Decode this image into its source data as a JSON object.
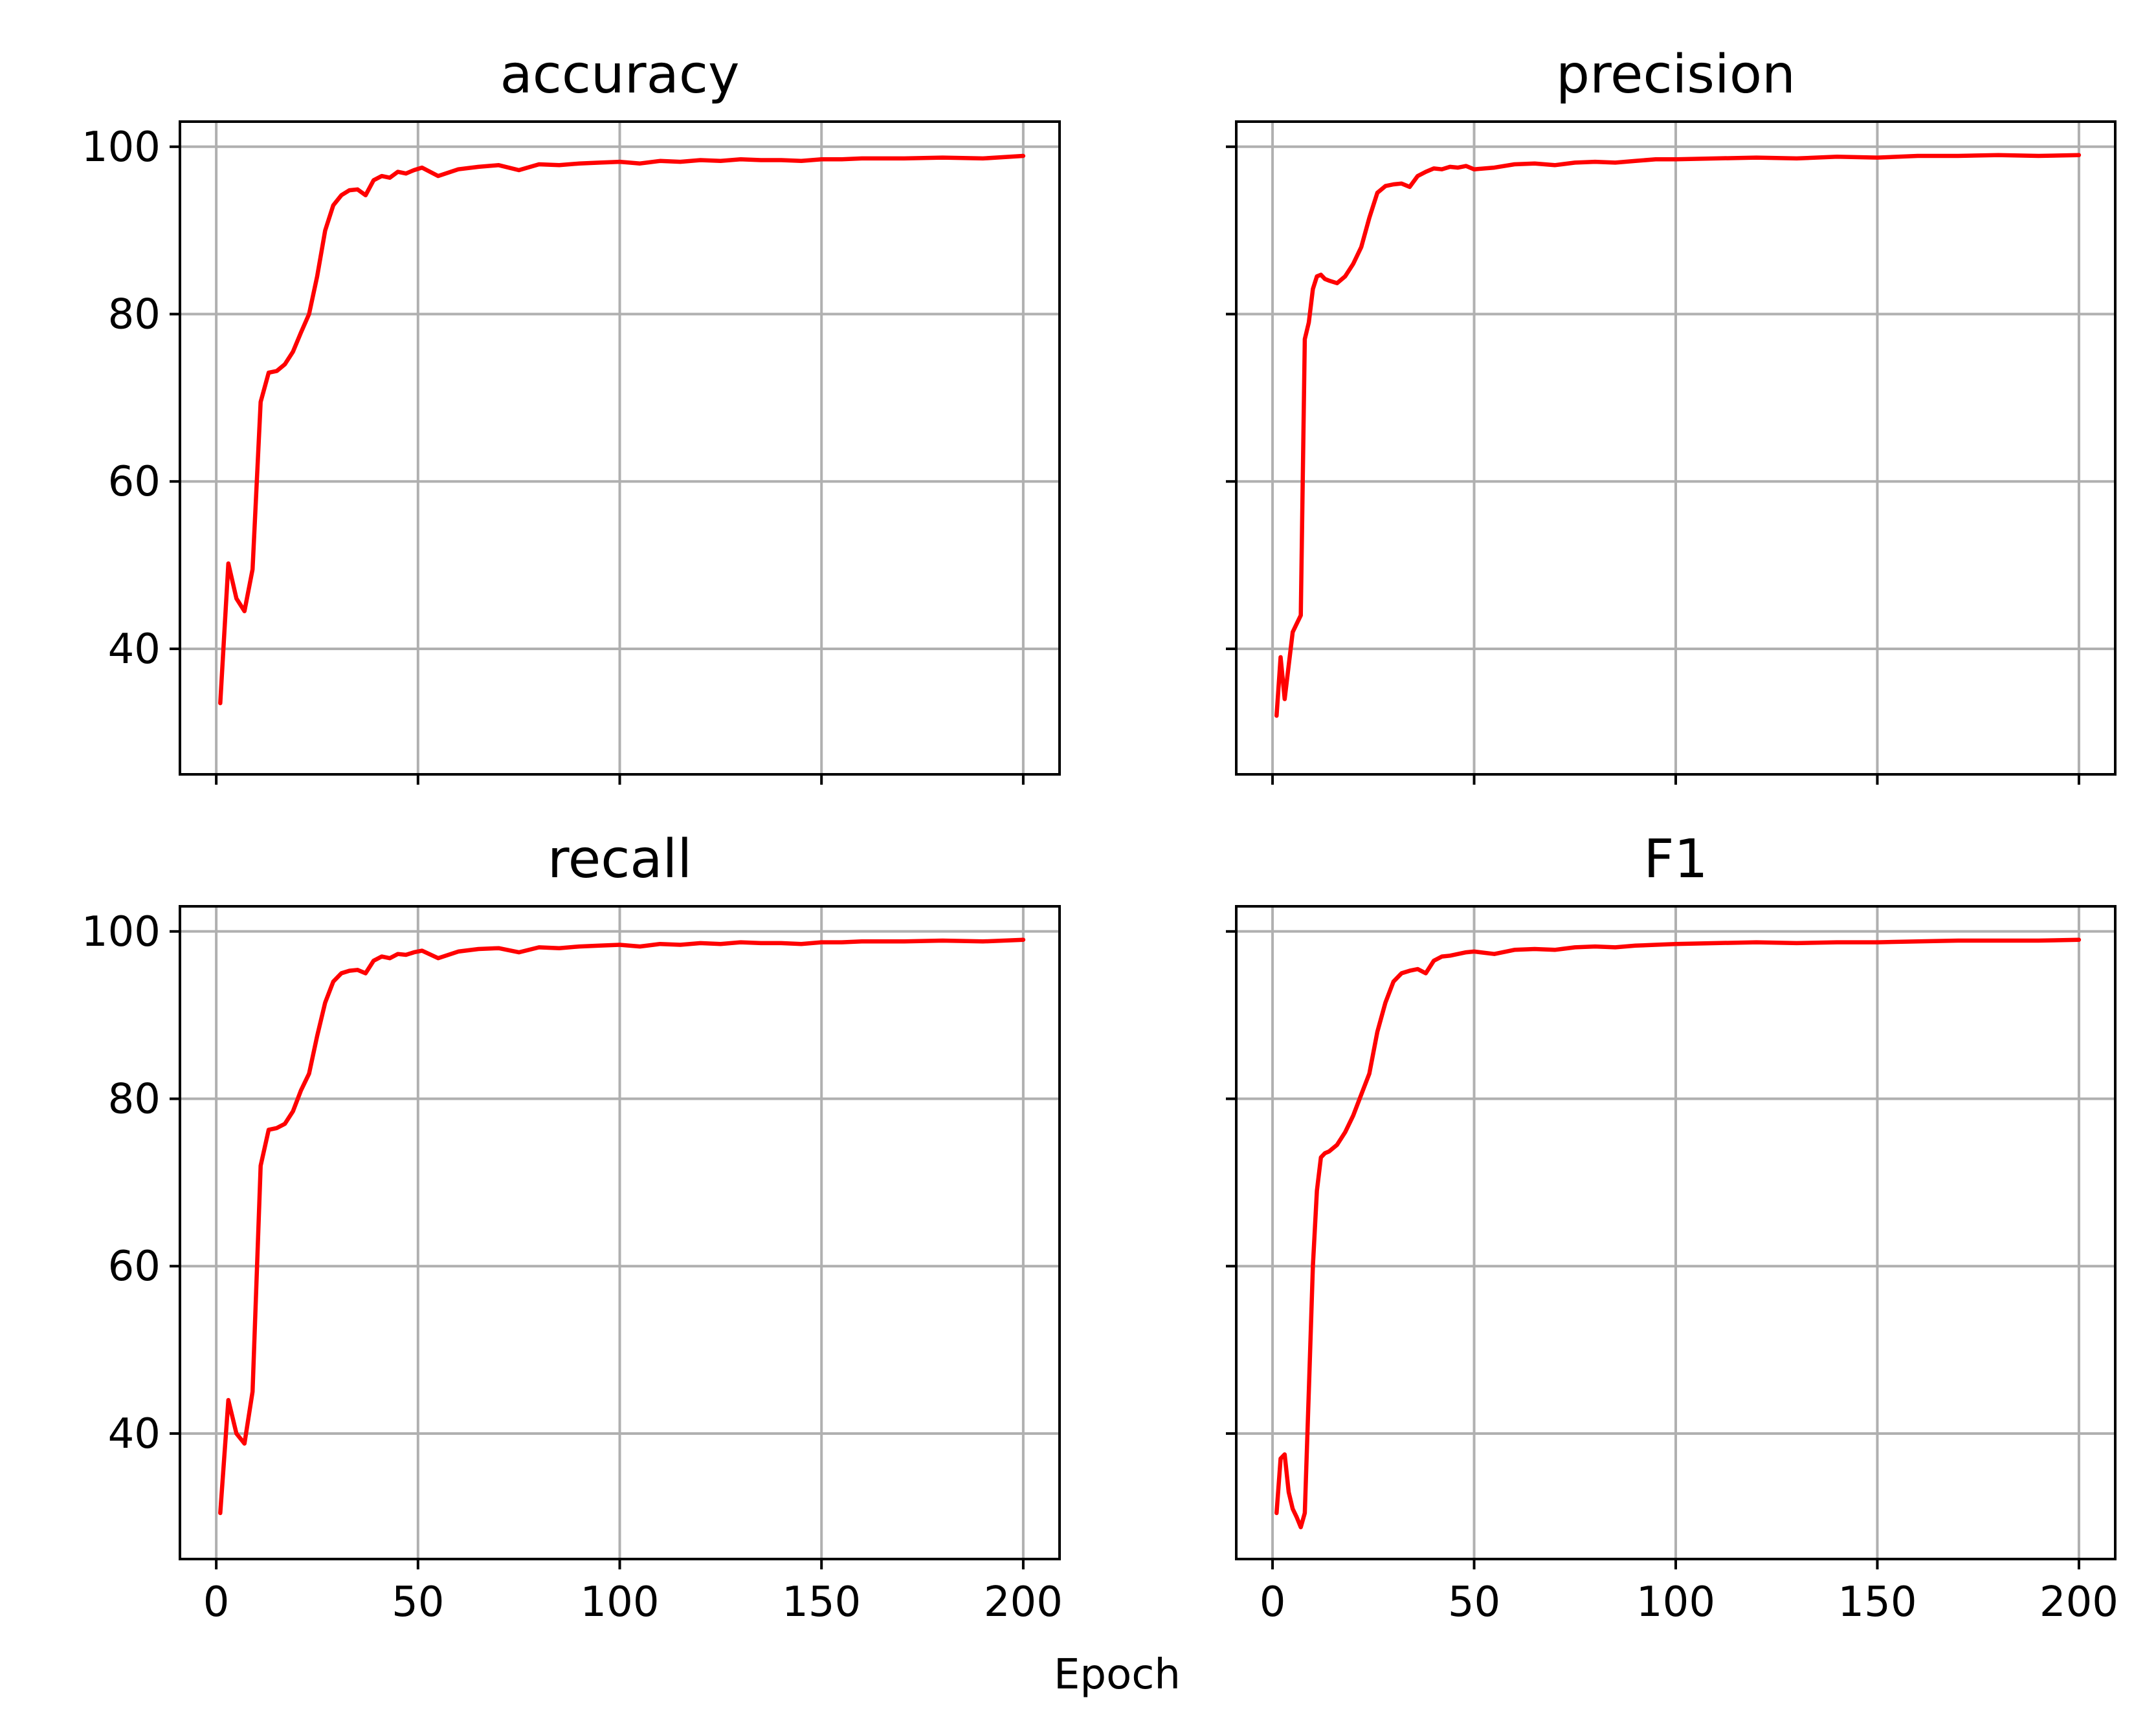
{
  "figure": {
    "xlabel": "Epoch"
  },
  "style": {
    "line_color": "#ff0000",
    "grid_color": "#b0b0b0",
    "grid": true
  },
  "chart_data": [
    {
      "type": "line",
      "title": "accuracy",
      "xlabel": "",
      "ylabel": "",
      "xlim": [
        -9,
        209
      ],
      "ylim": [
        25,
        103
      ],
      "xticks": [
        0,
        50,
        100,
        150,
        200
      ],
      "yticks": [
        40,
        60,
        80,
        100
      ],
      "show_xtick_labels": false,
      "show_ytick_labels": true,
      "series": [
        {
          "x": [
            1,
            3,
            5,
            7,
            9,
            11,
            13,
            15,
            17,
            19,
            21,
            23,
            25,
            27,
            29,
            31,
            33,
            35,
            37,
            39,
            41,
            43,
            45,
            47,
            49,
            51,
            55,
            60,
            65,
            70,
            75,
            80,
            85,
            90,
            95,
            100,
            105,
            110,
            115,
            120,
            125,
            130,
            135,
            140,
            145,
            150,
            155,
            160,
            170,
            180,
            190,
            200
          ],
          "y": [
            33.5,
            50.2,
            46.0,
            44.5,
            49.5,
            69.5,
            73.0,
            73.2,
            74.0,
            75.5,
            77.8,
            80.0,
            84.5,
            90.0,
            93.0,
            94.2,
            94.8,
            94.9,
            94.2,
            96.0,
            96.5,
            96.3,
            97.0,
            96.8,
            97.2,
            97.5,
            96.5,
            97.3,
            97.6,
            97.8,
            97.2,
            97.9,
            97.8,
            98.0,
            98.1,
            98.2,
            98.0,
            98.3,
            98.2,
            98.4,
            98.3,
            98.5,
            98.4,
            98.4,
            98.3,
            98.5,
            98.5,
            98.6,
            98.6,
            98.7,
            98.6,
            98.9
          ]
        }
      ]
    },
    {
      "type": "line",
      "title": "precision",
      "xlabel": "",
      "ylabel": "",
      "xlim": [
        -9,
        209
      ],
      "ylim": [
        25,
        103
      ],
      "xticks": [
        0,
        50,
        100,
        150,
        200
      ],
      "yticks": [
        40,
        60,
        80,
        100
      ],
      "show_xtick_labels": false,
      "show_ytick_labels": false,
      "series": [
        {
          "x": [
            1,
            2,
            3,
            4,
            5,
            6,
            7,
            8,
            9,
            10,
            11,
            12,
            13,
            14,
            16,
            18,
            20,
            22,
            24,
            26,
            28,
            30,
            32,
            34,
            36,
            38,
            40,
            42,
            44,
            46,
            48,
            50,
            55,
            60,
            65,
            70,
            75,
            80,
            85,
            90,
            95,
            100,
            110,
            120,
            130,
            140,
            150,
            160,
            170,
            180,
            190,
            200
          ],
          "y": [
            32.0,
            39.0,
            34.0,
            38.0,
            42.0,
            43.0,
            44.0,
            77.0,
            79.0,
            83.0,
            84.5,
            84.7,
            84.2,
            84.0,
            83.7,
            84.5,
            86.0,
            88.0,
            91.5,
            94.5,
            95.3,
            95.5,
            95.6,
            95.2,
            96.5,
            97.0,
            97.4,
            97.3,
            97.6,
            97.5,
            97.7,
            97.3,
            97.5,
            97.9,
            98.0,
            97.8,
            98.1,
            98.2,
            98.1,
            98.3,
            98.5,
            98.5,
            98.6,
            98.7,
            98.6,
            98.8,
            98.7,
            98.9,
            98.9,
            99.0,
            98.9,
            99.0
          ]
        }
      ]
    },
    {
      "type": "line",
      "title": "recall",
      "xlabel": "",
      "ylabel": "",
      "xlim": [
        -9,
        209
      ],
      "ylim": [
        25,
        103
      ],
      "xticks": [
        0,
        50,
        100,
        150,
        200
      ],
      "yticks": [
        40,
        60,
        80,
        100
      ],
      "show_xtick_labels": true,
      "show_ytick_labels": true,
      "series": [
        {
          "x": [
            1,
            3,
            5,
            7,
            9,
            11,
            13,
            15,
            17,
            19,
            21,
            23,
            25,
            27,
            29,
            31,
            33,
            35,
            37,
            39,
            41,
            43,
            45,
            47,
            49,
            51,
            55,
            60,
            65,
            70,
            75,
            80,
            85,
            90,
            95,
            100,
            105,
            110,
            115,
            120,
            125,
            130,
            135,
            140,
            145,
            150,
            155,
            160,
            170,
            180,
            190,
            200
          ],
          "y": [
            30.5,
            44.0,
            40.0,
            38.8,
            45.0,
            72.0,
            76.3,
            76.5,
            77.0,
            78.5,
            81.0,
            83.0,
            87.5,
            91.5,
            94.0,
            95.0,
            95.3,
            95.4,
            95.0,
            96.5,
            97.0,
            96.8,
            97.3,
            97.2,
            97.5,
            97.7,
            96.8,
            97.6,
            97.9,
            98.0,
            97.5,
            98.1,
            98.0,
            98.2,
            98.3,
            98.4,
            98.2,
            98.5,
            98.4,
            98.6,
            98.5,
            98.7,
            98.6,
            98.6,
            98.5,
            98.7,
            98.7,
            98.8,
            98.8,
            98.9,
            98.8,
            99.0
          ]
        }
      ]
    },
    {
      "type": "line",
      "title": "F1",
      "xlabel": "",
      "ylabel": "",
      "xlim": [
        -9,
        209
      ],
      "ylim": [
        25,
        103
      ],
      "xticks": [
        0,
        50,
        100,
        150,
        200
      ],
      "yticks": [
        40,
        60,
        80,
        100
      ],
      "show_xtick_labels": true,
      "show_ytick_labels": false,
      "series": [
        {
          "x": [
            1,
            2,
            3,
            4,
            5,
            6,
            7,
            8,
            9,
            10,
            11,
            12,
            13,
            14,
            16,
            18,
            20,
            22,
            24,
            26,
            28,
            30,
            32,
            34,
            36,
            38,
            40,
            42,
            44,
            46,
            48,
            50,
            55,
            60,
            65,
            70,
            75,
            80,
            85,
            90,
            95,
            100,
            110,
            120,
            130,
            140,
            150,
            160,
            170,
            180,
            190,
            200
          ],
          "y": [
            30.5,
            37.0,
            37.5,
            33.0,
            31.0,
            30.0,
            28.8,
            30.5,
            45.0,
            60.0,
            69.0,
            73.0,
            73.5,
            73.7,
            74.5,
            76.0,
            78.0,
            80.5,
            83.0,
            88.0,
            91.5,
            94.0,
            95.0,
            95.3,
            95.5,
            95.0,
            96.5,
            97.0,
            97.1,
            97.3,
            97.5,
            97.6,
            97.3,
            97.8,
            97.9,
            97.8,
            98.1,
            98.2,
            98.1,
            98.3,
            98.4,
            98.5,
            98.6,
            98.7,
            98.6,
            98.7,
            98.7,
            98.8,
            98.9,
            98.9,
            98.9,
            99.0
          ]
        }
      ]
    }
  ]
}
